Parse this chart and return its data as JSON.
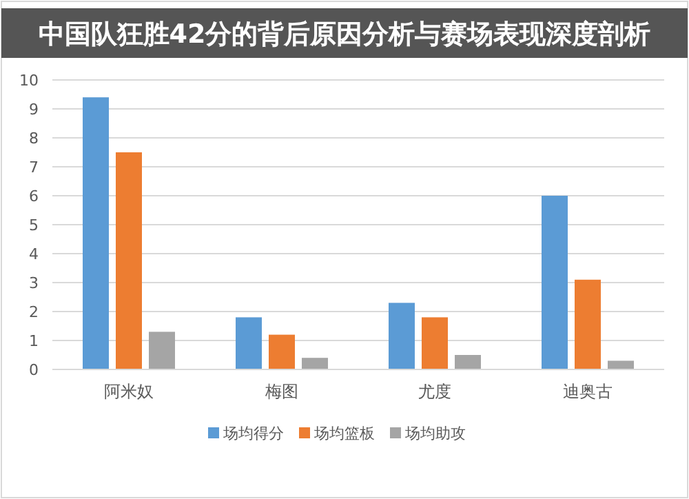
{
  "chart_data": {
    "type": "bar",
    "title": "中国队狂胜42分的背后原因分析与赛场表现深度剖析",
    "categories": [
      "阿米奴",
      "梅图",
      "尤度",
      "迪奥古"
    ],
    "series": [
      {
        "name": "场均得分",
        "color": "#5b9bd5",
        "values": [
          9.4,
          1.8,
          2.3,
          6.0
        ]
      },
      {
        "name": "场均篮板",
        "color": "#ed7d31",
        "values": [
          7.5,
          1.2,
          1.8,
          3.1
        ]
      },
      {
        "name": "场均助攻",
        "color": "#a5a5a5",
        "values": [
          1.3,
          0.4,
          0.5,
          0.3
        ]
      }
    ],
    "ylim": [
      0,
      10
    ],
    "yticks": [
      0,
      1,
      2,
      3,
      4,
      5,
      6,
      7,
      8,
      9,
      10
    ],
    "grid": "y",
    "legend": "bottom"
  }
}
